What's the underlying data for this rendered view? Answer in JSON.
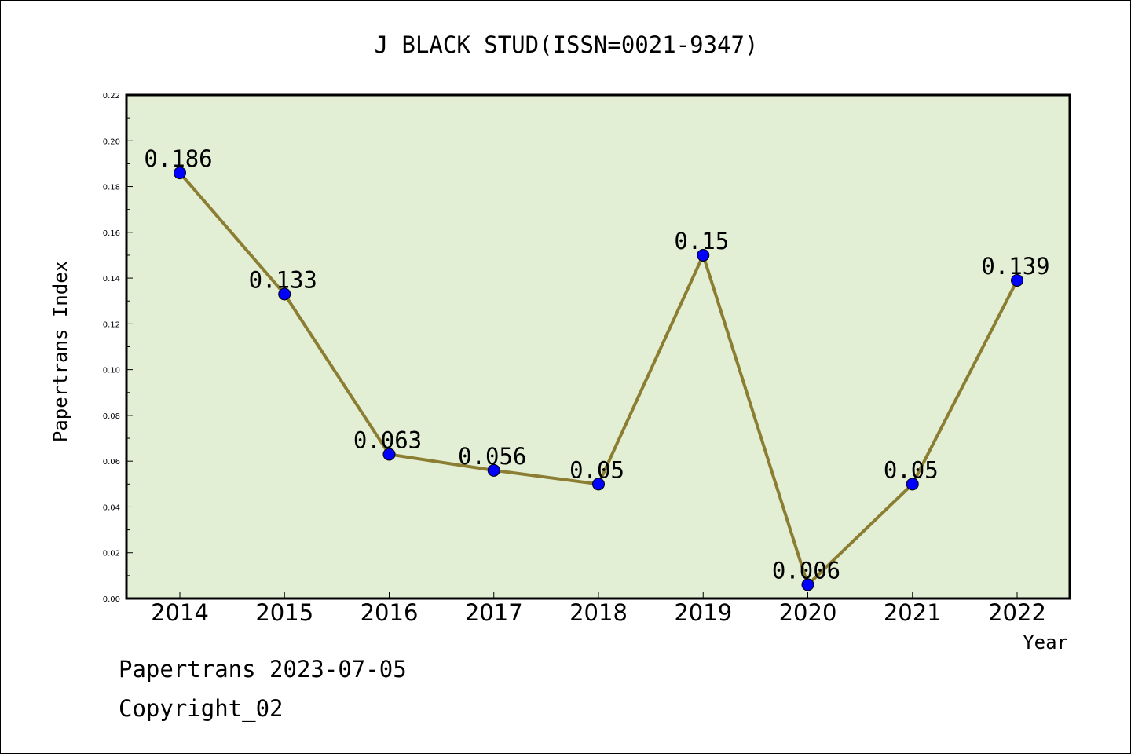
{
  "chart_data": {
    "type": "line",
    "title": "J BLACK STUD(ISSN=0021-9347)",
    "xlabel": "Year",
    "ylabel": "Papertrans Index",
    "categories": [
      "2014",
      "2015",
      "2016",
      "2017",
      "2018",
      "2019",
      "2020",
      "2021",
      "2022"
    ],
    "series": [
      {
        "values": [
          0.186,
          0.133,
          0.063,
          0.056,
          0.05,
          0.15,
          0.006,
          0.05,
          0.139
        ],
        "labels": [
          "0.186",
          "0.133",
          "0.063",
          "0.056",
          "0.05",
          "0.15",
          "0.006",
          "0.05",
          "0.139"
        ]
      }
    ],
    "ylim": [
      0,
      0.22
    ],
    "yticks": [
      "0.00",
      "0.02",
      "0.04",
      "0.06",
      "0.08",
      "0.10",
      "0.12",
      "0.14",
      "0.16",
      "0.18",
      "0.20",
      "0.22"
    ],
    "grid": false,
    "colors": {
      "plot_background": "#e2efd4",
      "line": "#8b7d32",
      "marker": "#0000ff"
    }
  },
  "footer": {
    "date_text": "Papertrans 2023-07-05",
    "copyright_text": "Copyright_02"
  }
}
